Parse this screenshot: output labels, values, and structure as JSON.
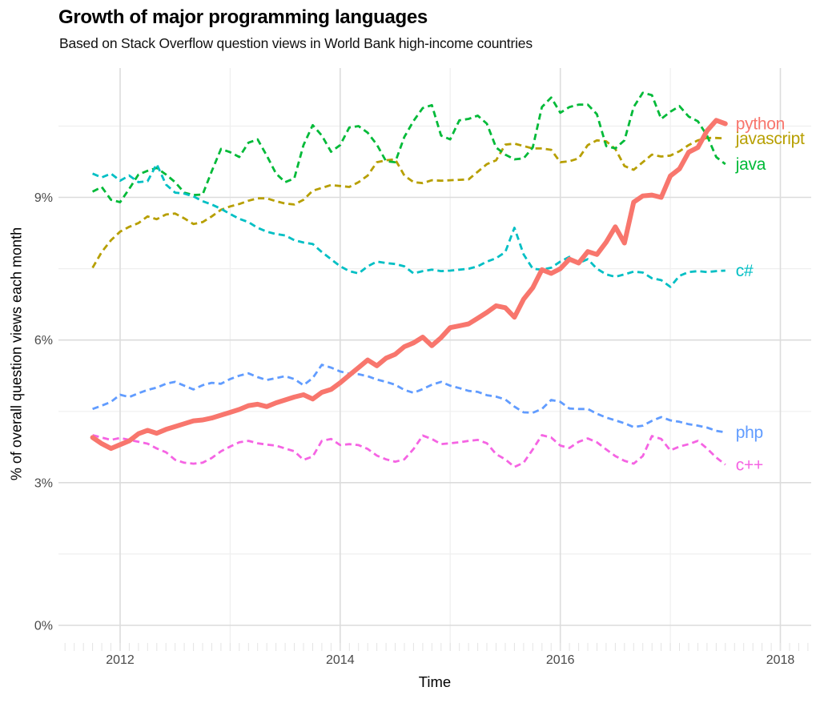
{
  "chart_data": {
    "type": "line",
    "title": "Growth of major programming languages",
    "subtitle": "Based on Stack Overflow question views in World Bank high-income countries",
    "xlabel": "Time",
    "ylabel": "% of overall question views each month",
    "xlim": [
      2011.44,
      2018.28
    ],
    "ylim": [
      -0.32,
      11.72
    ],
    "grid": true,
    "legend_position": "right-end-labels",
    "x_ticks": [
      {
        "value": 2012,
        "label": "2012"
      },
      {
        "value": 2014,
        "label": "2014"
      },
      {
        "value": 2016,
        "label": "2016"
      },
      {
        "value": 2018,
        "label": "2018"
      }
    ],
    "x_minor": [
      2013,
      2015,
      2017
    ],
    "y_ticks": [
      {
        "value": 0,
        "label": "0%"
      },
      {
        "value": 3,
        "label": "3%"
      },
      {
        "value": 6,
        "label": "6%"
      },
      {
        "value": 9,
        "label": "9%"
      }
    ],
    "y_minor": [
      1.5,
      4.5,
      7.5,
      10.5
    ],
    "x": [
      2011.75,
      2011.833,
      2011.917,
      2012,
      2012.083,
      2012.167,
      2012.25,
      2012.333,
      2012.417,
      2012.5,
      2012.583,
      2012.667,
      2012.75,
      2012.833,
      2012.917,
      2013,
      2013.083,
      2013.167,
      2013.25,
      2013.333,
      2013.417,
      2013.5,
      2013.583,
      2013.667,
      2013.75,
      2013.833,
      2013.917,
      2014,
      2014.083,
      2014.167,
      2014.25,
      2014.333,
      2014.417,
      2014.5,
      2014.583,
      2014.667,
      2014.75,
      2014.833,
      2014.917,
      2015,
      2015.083,
      2015.167,
      2015.25,
      2015.333,
      2015.417,
      2015.5,
      2015.583,
      2015.667,
      2015.75,
      2015.833,
      2015.917,
      2016,
      2016.083,
      2016.167,
      2016.25,
      2016.333,
      2016.417,
      2016.5,
      2016.583,
      2016.667,
      2016.75,
      2016.833,
      2016.917,
      2017,
      2017.083,
      2017.167,
      2017.25,
      2017.333,
      2017.417,
      2017.5
    ],
    "series": [
      {
        "id": "python",
        "label": "python",
        "color": "#F8766D",
        "style": "solid",
        "width": 6,
        "values": [
          3.95,
          3.82,
          3.72,
          3.8,
          3.88,
          4.03,
          4.1,
          4.04,
          4.12,
          4.18,
          4.24,
          4.3,
          4.32,
          4.36,
          4.42,
          4.48,
          4.54,
          4.62,
          4.65,
          4.6,
          4.68,
          4.74,
          4.8,
          4.85,
          4.76,
          4.9,
          4.96,
          5.1,
          5.26,
          5.42,
          5.58,
          5.46,
          5.62,
          5.7,
          5.86,
          5.94,
          6.06,
          5.88,
          6.05,
          6.26,
          6.3,
          6.34,
          6.46,
          6.58,
          6.72,
          6.68,
          6.48,
          6.86,
          7.1,
          7.48,
          7.4,
          7.5,
          7.7,
          7.62,
          7.86,
          7.8,
          8.06,
          8.38,
          8.04,
          8.9,
          9.03,
          9.05,
          9.0,
          9.45,
          9.6,
          9.95,
          10.05,
          10.4,
          10.62,
          10.55
        ]
      },
      {
        "id": "javascript",
        "label": "javascript",
        "color": "#B79F00",
        "style": "dashed",
        "width": 2.8,
        "values": [
          7.52,
          7.85,
          8.1,
          8.28,
          8.38,
          8.46,
          8.6,
          8.54,
          8.64,
          8.66,
          8.56,
          8.44,
          8.48,
          8.6,
          8.74,
          8.81,
          8.86,
          8.93,
          8.98,
          8.98,
          8.92,
          8.87,
          8.85,
          8.95,
          9.14,
          9.2,
          9.26,
          9.24,
          9.22,
          9.32,
          9.46,
          9.74,
          9.78,
          9.8,
          9.46,
          9.32,
          9.3,
          9.36,
          9.35,
          9.36,
          9.37,
          9.38,
          9.54,
          9.7,
          9.78,
          10.11,
          10.13,
          10.08,
          10.03,
          10.03,
          10.0,
          9.74,
          9.76,
          9.82,
          10.1,
          10.2,
          10.18,
          10.02,
          9.66,
          9.58,
          9.74,
          9.9,
          9.86,
          9.88,
          9.97,
          10.1,
          10.2,
          10.25,
          10.25,
          10.24
        ]
      },
      {
        "id": "java",
        "label": "java",
        "color": "#00BA38",
        "style": "dashed",
        "width": 2.8,
        "values": [
          9.12,
          9.22,
          8.95,
          8.9,
          9.18,
          9.48,
          9.56,
          9.62,
          9.48,
          9.32,
          9.1,
          9.05,
          9.06,
          9.55,
          10.02,
          9.95,
          9.85,
          10.15,
          10.22,
          9.88,
          9.5,
          9.32,
          9.4,
          10.1,
          10.52,
          10.3,
          9.96,
          10.1,
          10.47,
          10.5,
          10.36,
          10.11,
          9.76,
          9.74,
          10.27,
          10.61,
          10.88,
          10.94,
          10.3,
          10.22,
          10.62,
          10.65,
          10.72,
          10.55,
          10.05,
          9.9,
          9.8,
          9.82,
          10.05,
          10.9,
          11.1,
          10.78,
          10.9,
          10.95,
          10.95,
          10.75,
          10.08,
          10.03,
          10.2,
          10.9,
          11.2,
          11.15,
          10.65,
          10.8,
          10.92,
          10.7,
          10.6,
          10.3,
          9.85,
          9.7
        ]
      },
      {
        "id": "c-sharp",
        "label": "c#",
        "color": "#00BFC4",
        "style": "dashed",
        "width": 2.8,
        "values": [
          9.5,
          9.42,
          9.5,
          9.35,
          9.46,
          9.32,
          9.34,
          9.7,
          9.27,
          9.1,
          9.08,
          9.02,
          8.92,
          8.85,
          8.76,
          8.65,
          8.55,
          8.48,
          8.36,
          8.28,
          8.23,
          8.2,
          8.1,
          8.05,
          8.02,
          7.85,
          7.7,
          7.55,
          7.45,
          7.4,
          7.55,
          7.65,
          7.62,
          7.6,
          7.55,
          7.4,
          7.45,
          7.48,
          7.45,
          7.46,
          7.48,
          7.5,
          7.55,
          7.65,
          7.72,
          7.85,
          8.36,
          7.8,
          7.5,
          7.48,
          7.52,
          7.65,
          7.75,
          7.62,
          7.7,
          7.5,
          7.38,
          7.33,
          7.38,
          7.44,
          7.42,
          7.3,
          7.26,
          7.12,
          7.35,
          7.43,
          7.45,
          7.43,
          7.45,
          7.46
        ]
      },
      {
        "id": "php",
        "label": "php",
        "color": "#619CFF",
        "style": "dashed",
        "width": 2.8,
        "values": [
          4.55,
          4.62,
          4.7,
          4.85,
          4.8,
          4.88,
          4.95,
          5.0,
          5.08,
          5.12,
          5.04,
          4.96,
          5.05,
          5.1,
          5.08,
          5.18,
          5.25,
          5.3,
          5.22,
          5.16,
          5.2,
          5.24,
          5.18,
          5.05,
          5.2,
          5.48,
          5.42,
          5.34,
          5.29,
          5.28,
          5.24,
          5.17,
          5.12,
          5.06,
          4.95,
          4.89,
          4.97,
          5.06,
          5.12,
          5.04,
          4.99,
          4.93,
          4.91,
          4.84,
          4.81,
          4.75,
          4.6,
          4.48,
          4.47,
          4.55,
          4.74,
          4.7,
          4.56,
          4.55,
          4.55,
          4.45,
          4.37,
          4.31,
          4.25,
          4.17,
          4.2,
          4.3,
          4.38,
          4.31,
          4.28,
          4.23,
          4.2,
          4.16,
          4.09,
          4.06
        ]
      },
      {
        "id": "c-plus-plus",
        "label": "c++",
        "color": "#F564E3",
        "style": "dashed",
        "width": 2.8,
        "values": [
          4.0,
          3.95,
          3.9,
          3.94,
          3.9,
          3.86,
          3.82,
          3.72,
          3.64,
          3.48,
          3.42,
          3.4,
          3.42,
          3.52,
          3.66,
          3.76,
          3.85,
          3.88,
          3.83,
          3.8,
          3.78,
          3.72,
          3.66,
          3.48,
          3.55,
          3.88,
          3.92,
          3.79,
          3.81,
          3.79,
          3.71,
          3.57,
          3.49,
          3.44,
          3.49,
          3.71,
          3.99,
          3.92,
          3.81,
          3.83,
          3.85,
          3.88,
          3.9,
          3.83,
          3.6,
          3.49,
          3.33,
          3.42,
          3.7,
          4.0,
          3.95,
          3.78,
          3.73,
          3.86,
          3.93,
          3.85,
          3.7,
          3.56,
          3.46,
          3.4,
          3.56,
          3.98,
          3.92,
          3.68,
          3.76,
          3.81,
          3.88,
          3.72,
          3.53,
          3.38
        ]
      }
    ]
  }
}
